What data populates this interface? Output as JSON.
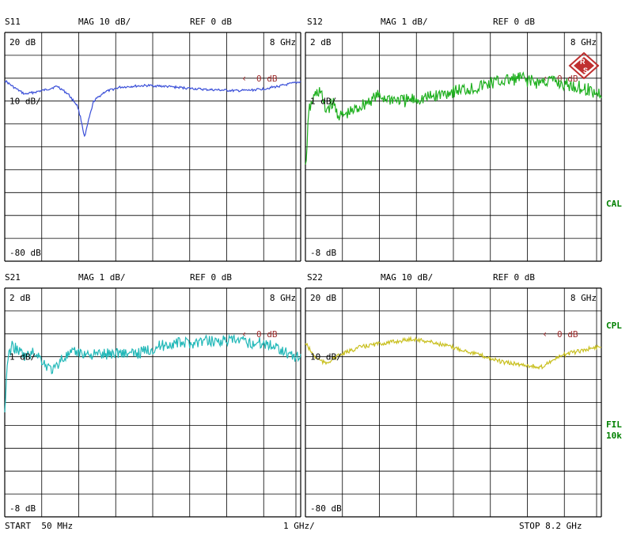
{
  "colors": {
    "grid": "#000000",
    "ref": "#a03030",
    "s11": "#3a4fd8",
    "s12": "#1fb01f",
    "s21": "#22b8b8",
    "s22": "#c9c020",
    "side": "#008000"
  },
  "footer": {
    "start": "START  50 MHz",
    "mid": "1 GHz/",
    "stop": "STOP 8.2 GHz"
  },
  "side_labels": {
    "cal": "CAL",
    "cpl": "CPL",
    "fil": "FIL",
    "fil_value": "10k"
  },
  "logo_icon": "rohde-schwarz-logo",
  "chart_data": [
    {
      "type": "line",
      "title": "S11",
      "header_mag": "MAG 10 dB/",
      "header_ref": "REF 0 dB",
      "top_label": "20 dB",
      "scale_label": "10 dB/",
      "bottom_label": "-80 dB",
      "freq_label": "8 GHz",
      "ref_label": "0 dB",
      "ref_level": 0,
      "ylim": [
        -80,
        20
      ],
      "xlim": [
        0.05,
        8.2
      ],
      "series": [
        {
          "color": "#3a4fd8",
          "x": [
            0.05,
            0.3,
            0.6,
            0.9,
            1.2,
            1.5,
            1.8,
            2.05,
            2.15,
            2.25,
            2.35,
            2.5,
            2.8,
            3.2,
            3.6,
            4.0,
            4.4,
            4.8,
            5.2,
            5.6,
            6.0,
            6.4,
            6.8,
            7.2,
            7.6,
            8.0,
            8.2
          ],
          "y": [
            -1,
            -4,
            -7,
            -6,
            -5,
            -3.5,
            -7,
            -12,
            -18,
            -26,
            -19,
            -10,
            -6,
            -4,
            -3.5,
            -3.2,
            -3.5,
            -4,
            -4.5,
            -5,
            -5.2,
            -5.5,
            -5.3,
            -4.6,
            -3.5,
            -2.2,
            -1.5
          ],
          "noise": 0.5
        }
      ]
    },
    {
      "type": "line",
      "title": "S12",
      "header_mag": "MAG 1 dB/",
      "header_ref": "REF 0 dB",
      "top_label": "2 dB",
      "scale_label": "1 dB/",
      "bottom_label": "-8 dB",
      "freq_label": "8 GHz",
      "ref_label": "0 dB",
      "ref_level": 0,
      "ylim": [
        -8,
        2
      ],
      "xlim": [
        0.05,
        8.2
      ],
      "series": [
        {
          "color": "#1fb01f",
          "x": [
            0.05,
            0.15,
            0.3,
            0.45,
            0.6,
            0.8,
            1.0,
            1.3,
            1.6,
            2.0,
            2.4,
            2.8,
            3.2,
            3.6,
            4.0,
            4.4,
            4.8,
            5.2,
            5.6,
            6.0,
            6.4,
            6.8,
            7.2,
            7.6,
            8.0,
            8.2
          ],
          "y": [
            -4,
            -1.4,
            -0.8,
            -0.5,
            -1.4,
            -1.1,
            -1.7,
            -1.5,
            -1.2,
            -0.8,
            -0.9,
            -1.0,
            -0.9,
            -0.8,
            -0.6,
            -0.5,
            -0.4,
            -0.2,
            -0.1,
            0.0,
            -0.2,
            -0.1,
            -0.3,
            -0.4,
            -0.6,
            -0.7
          ],
          "noise": 0.3
        }
      ]
    },
    {
      "type": "line",
      "title": "S21",
      "header_mag": "MAG 1 dB/",
      "header_ref": "REF 0 dB",
      "top_label": "2 dB",
      "scale_label": "1 dB/",
      "bottom_label": "-8 dB",
      "freq_label": "8 GHz",
      "ref_label": "0 dB",
      "ref_level": 0,
      "ylim": [
        -8,
        2
      ],
      "xlim": [
        0.05,
        8.2
      ],
      "series": [
        {
          "color": "#22b8b8",
          "x": [
            0.05,
            0.12,
            0.25,
            0.4,
            0.6,
            0.9,
            1.2,
            1.4,
            1.6,
            2.0,
            2.4,
            2.8,
            3.2,
            3.6,
            4.0,
            4.4,
            4.8,
            5.2,
            5.6,
            6.0,
            6.4,
            6.8,
            7.2,
            7.6,
            8.0,
            8.2
          ],
          "y": [
            -3.5,
            -1.2,
            -0.5,
            -0.7,
            -1.0,
            -0.8,
            -1.4,
            -1.6,
            -1.1,
            -0.8,
            -0.9,
            -0.9,
            -0.8,
            -0.9,
            -0.7,
            -0.5,
            -0.4,
            -0.4,
            -0.3,
            -0.3,
            -0.3,
            -0.4,
            -0.4,
            -0.6,
            -1.0,
            -1.0
          ],
          "noise": 0.25
        }
      ]
    },
    {
      "type": "line",
      "title": "S22",
      "header_mag": "MAG 10 dB/",
      "header_ref": "REF 0 dB",
      "top_label": "20 dB",
      "scale_label": "10 dB/",
      "bottom_label": "-80 dB",
      "freq_label": "8 GHz",
      "ref_label": "0 dB",
      "ref_level": 0,
      "ylim": [
        -80,
        20
      ],
      "xlim": [
        0.05,
        8.2
      ],
      "series": [
        {
          "color": "#c9c020",
          "x": [
            0.05,
            0.3,
            0.6,
            0.9,
            1.2,
            1.5,
            2.0,
            2.5,
            3.0,
            3.5,
            4.0,
            4.5,
            5.0,
            5.5,
            6.0,
            6.3,
            6.5,
            6.8,
            7.2,
            7.6,
            8.0,
            8.2
          ],
          "y": [
            -4,
            -10,
            -13,
            -10,
            -8,
            -6,
            -4.5,
            -3.5,
            -2.2,
            -3.5,
            -5.5,
            -7.5,
            -10,
            -12.5,
            -13.5,
            -14,
            -15,
            -12,
            -9,
            -7.5,
            -6,
            -5.5
          ],
          "noise": 0.9
        }
      ]
    }
  ]
}
